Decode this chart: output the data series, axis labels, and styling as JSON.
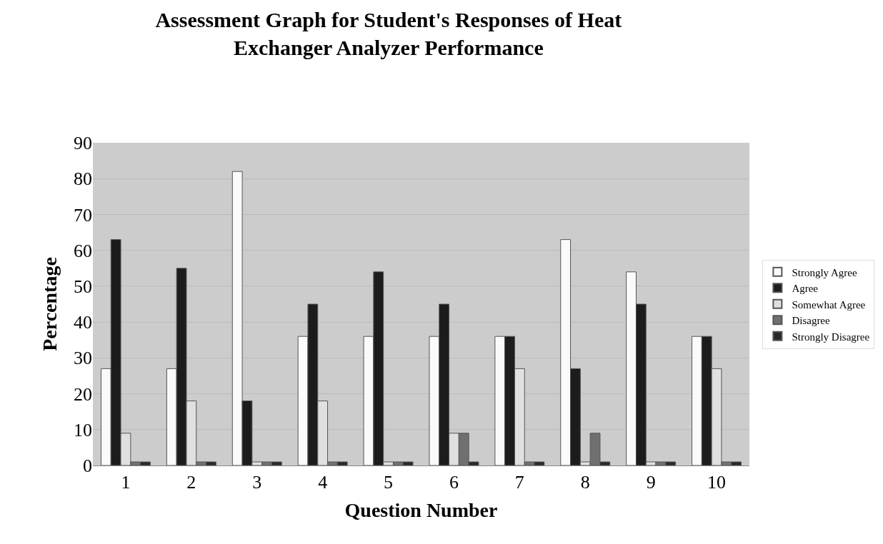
{
  "chart_data": {
    "type": "bar",
    "title": "Assessment Graph for Student's Responses of Heat\nExchanger Analyzer Performance",
    "xlabel": "Question Number",
    "ylabel": "Percentage",
    "categories": [
      "1",
      "2",
      "3",
      "4",
      "5",
      "6",
      "7",
      "8",
      "9",
      "10"
    ],
    "series": [
      {
        "name": "Strongly Agree",
        "color": "#fafafa",
        "values": [
          27,
          27,
          82,
          36,
          36,
          36,
          36,
          63,
          54,
          36
        ]
      },
      {
        "name": "Agree",
        "color": "#1c1c1c",
        "values": [
          63,
          55,
          18,
          45,
          54,
          45,
          36,
          27,
          45,
          36
        ]
      },
      {
        "name": "Somewhat Agree",
        "color": "#e0e0e0",
        "values": [
          9,
          18,
          1,
          18,
          1,
          9,
          27,
          1,
          1,
          27
        ]
      },
      {
        "name": "Disagree",
        "color": "#707070",
        "values": [
          1,
          1,
          1,
          1,
          1,
          9,
          1,
          9,
          1,
          1
        ]
      },
      {
        "name": "Strongly Disagree",
        "color": "#2a2a2a",
        "values": [
          1,
          1,
          1,
          1,
          1,
          1,
          1,
          1,
          1,
          1
        ]
      }
    ],
    "ylim": [
      0,
      90
    ],
    "yticks": [
      0,
      10,
      20,
      30,
      40,
      50,
      60,
      70,
      80,
      90
    ],
    "grid": "y",
    "legend": "right"
  }
}
